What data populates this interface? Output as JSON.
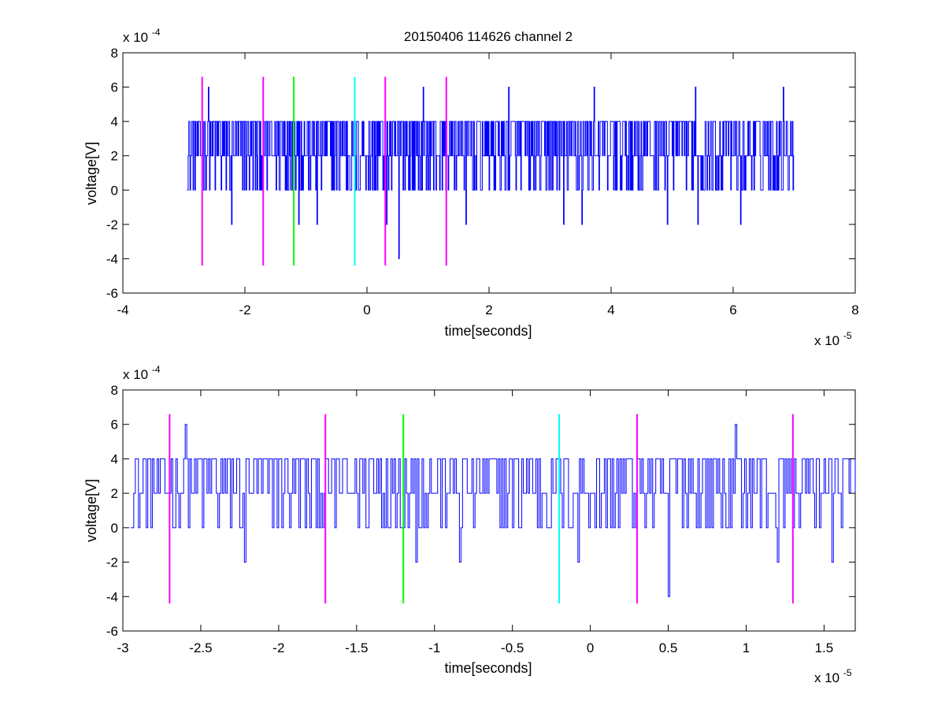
{
  "figure_title": "20150406 114626 channel 2",
  "chart_data": [
    {
      "type": "line",
      "title": "20150406 114626 channel 2",
      "xlabel": "time[seconds]",
      "ylabel": "voltage[V]",
      "x_multiplier": "x 10",
      "x_exponent": "-5",
      "y_multiplier": "x 10",
      "y_exponent": "-4",
      "xlim": [
        -4,
        8
      ],
      "ylim": [
        -6,
        8
      ],
      "xticks": [
        -4,
        -2,
        0,
        2,
        4,
        6,
        8
      ],
      "xtick_labels": [
        "-4",
        "-2",
        "0",
        "2",
        "4",
        "6",
        "8"
      ],
      "yticks": [
        -6,
        -4,
        -2,
        0,
        2,
        4,
        6,
        8
      ],
      "ytick_labels": [
        "-6",
        "-4",
        "-2",
        "0",
        "2",
        "4",
        "6",
        "8"
      ],
      "grid": false,
      "signal": {
        "color": "#0000ff",
        "x_range": [
          -2.95,
          7.0
        ],
        "baseline": 2,
        "levels": [
          0,
          2,
          4
        ],
        "spikes": [
          [
            -2.6,
            6
          ],
          [
            -2.22,
            -2
          ],
          [
            -1.12,
            -2
          ],
          [
            -0.82,
            -2
          ],
          [
            0.32,
            -2
          ],
          [
            0.52,
            -4
          ],
          [
            0.92,
            6
          ],
          [
            1.62,
            -2
          ],
          [
            2.32,
            6
          ],
          [
            3.22,
            -2
          ],
          [
            3.52,
            -2
          ],
          [
            3.72,
            6
          ],
          [
            4.92,
            -2
          ],
          [
            5.38,
            6
          ],
          [
            5.42,
            -2
          ],
          [
            6.12,
            -2
          ],
          [
            6.82,
            6
          ]
        ]
      },
      "markers": [
        {
          "x": -2.7,
          "color": "#ff00ff"
        },
        {
          "x": -1.7,
          "color": "#ff00ff"
        },
        {
          "x": -1.2,
          "color": "#00ff00"
        },
        {
          "x": -0.2,
          "color": "#00ffff"
        },
        {
          "x": 0.3,
          "color": "#ff00ff"
        },
        {
          "x": 1.3,
          "color": "#ff00ff"
        }
      ],
      "marker_range": [
        -4.4,
        6.6
      ]
    },
    {
      "type": "line",
      "title": "",
      "xlabel": "time[seconds]",
      "ylabel": "voltage[V]",
      "x_multiplier": "x 10",
      "x_exponent": "-5",
      "y_multiplier": "x 10",
      "y_exponent": "-4",
      "xlim": [
        -3.0,
        1.7
      ],
      "ylim": [
        -6,
        8
      ],
      "xticks": [
        -3,
        -2.5,
        -2,
        -1.5,
        -1,
        -0.5,
        0,
        0.5,
        1,
        1.5
      ],
      "xtick_labels": [
        "-3",
        "-2.5",
        "-2",
        "-1.5",
        "-1",
        "-0.5",
        "0",
        "0.5",
        "1",
        "1.5"
      ],
      "yticks": [
        -6,
        -4,
        -2,
        0,
        2,
        4,
        6,
        8
      ],
      "ytick_labels": [
        "-6",
        "-4",
        "-2",
        "0",
        "2",
        "4",
        "6",
        "8"
      ],
      "grid": false,
      "signal": {
        "color": "#0000ff",
        "x_range": [
          -2.95,
          1.7
        ],
        "baseline": 2,
        "levels": [
          0,
          2,
          4
        ],
        "spikes": [
          [
            -2.6,
            6
          ],
          [
            -2.22,
            -2
          ],
          [
            -1.12,
            -2
          ],
          [
            -0.84,
            -2
          ],
          [
            -0.08,
            -2
          ],
          [
            0.5,
            -4
          ],
          [
            0.93,
            6
          ],
          [
            1.2,
            -2
          ],
          [
            1.55,
            -2
          ]
        ]
      },
      "markers": [
        {
          "x": -2.7,
          "color": "#ff00ff"
        },
        {
          "x": -1.7,
          "color": "#ff00ff"
        },
        {
          "x": -1.2,
          "color": "#00ff00"
        },
        {
          "x": -0.2,
          "color": "#00ffff"
        },
        {
          "x": 0.3,
          "color": "#ff00ff"
        },
        {
          "x": 1.3,
          "color": "#ff00ff"
        }
      ],
      "marker_range": [
        -4.4,
        6.6
      ]
    }
  ]
}
